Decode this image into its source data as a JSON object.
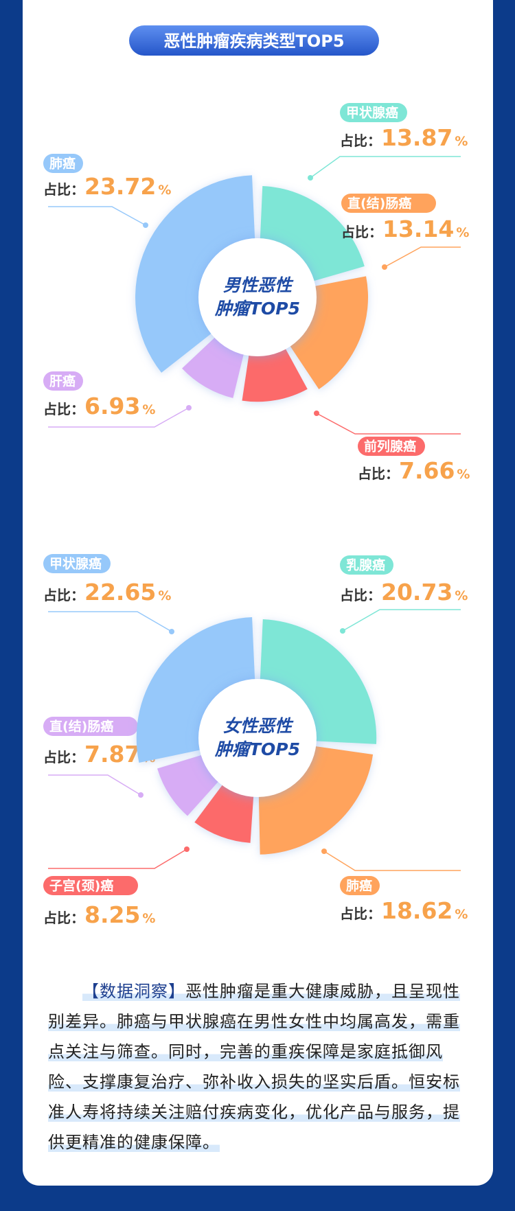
{
  "title": "恶性肿瘤疾病类型TOP5",
  "chart_data": [
    {
      "type": "rose",
      "center_label": [
        "男性恶性",
        "肿瘤TOP5"
      ],
      "value_prefix": "占比：",
      "value_suffix": "%",
      "categories": [
        "甲状腺癌",
        "直(结)肠癌",
        "前列腺癌",
        "肝癌",
        "肺癌"
      ],
      "values": [
        13.87,
        13.14,
        7.66,
        6.93,
        23.72
      ],
      "colors": [
        "#7ee6d6",
        "#ffa35c",
        "#fc6b6b",
        "#d7acf5",
        "#96c8fa"
      ]
    },
    {
      "type": "rose",
      "center_label": [
        "女性恶性",
        "肿瘤TOP5"
      ],
      "value_prefix": "占比：",
      "value_suffix": "%",
      "categories": [
        "乳腺癌",
        "肺癌",
        "子宫(颈)癌",
        "直(结)肠癌",
        "甲状腺癌"
      ],
      "values": [
        20.73,
        18.62,
        8.25,
        7.87,
        22.65
      ],
      "colors": [
        "#7ee6d6",
        "#ffa35c",
        "#fc6b6b",
        "#d7acf5",
        "#96c8fa"
      ]
    }
  ],
  "insight": {
    "lead": "【数据洞察】",
    "body": "恶性肿瘤是重大健康威胁，且呈现性别差异。肺癌与甲状腺癌在男性女性中均属高发，需重点关注与筛查。同时，完善的重疾保障是家庭抵御风险、支撑康复治疗、弥补收入损失的坚实后盾。恒安标准人寿将持续关注赔付疾病变化，优化产品与服务，提供更精准的健康保障。"
  }
}
